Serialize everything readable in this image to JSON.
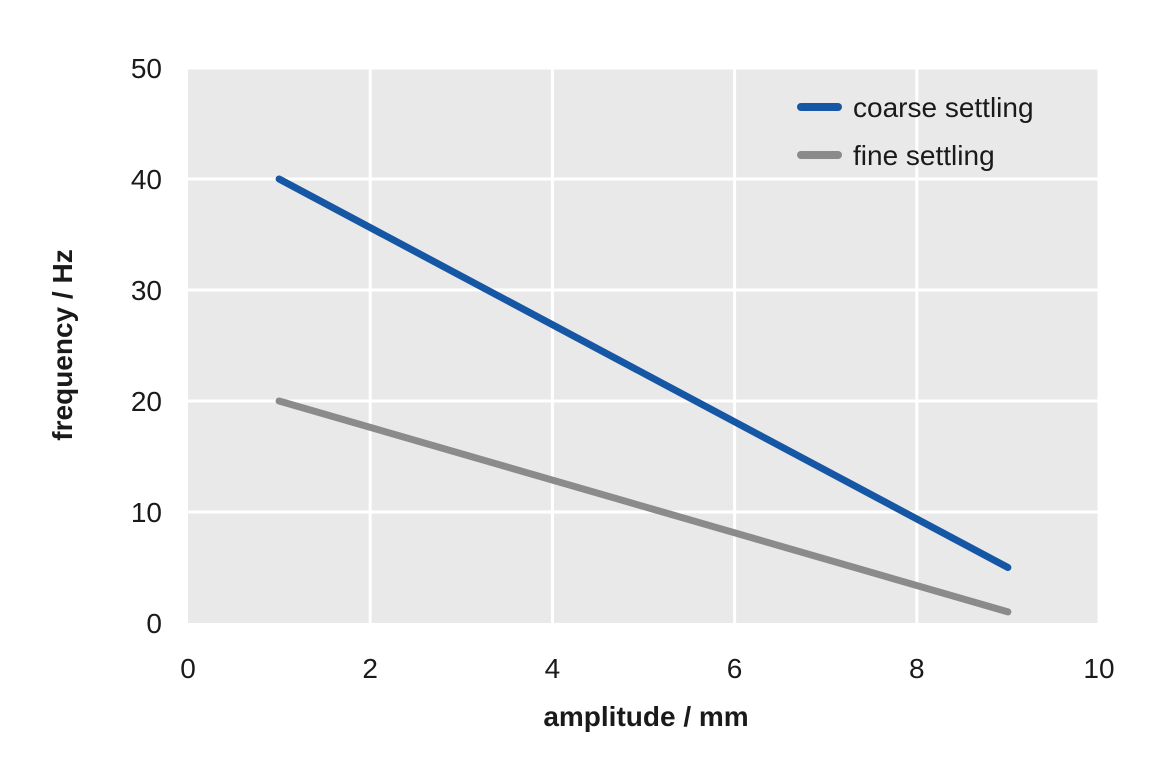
{
  "chart_data": {
    "type": "line",
    "title": "",
    "xlabel": "amplitude / mm",
    "ylabel": "frequency / Hz",
    "xlim": [
      0,
      10
    ],
    "ylim": [
      0,
      50
    ],
    "xticks": [
      0,
      2,
      4,
      6,
      8,
      10
    ],
    "yticks": [
      0,
      10,
      20,
      30,
      40,
      50
    ],
    "grid": true,
    "grid_color": "#ffffff",
    "plot_background": "#e9e9e9",
    "page_background": "#ffffff",
    "text_color": "#1a1a1a",
    "legend_position": "top-right-inside",
    "series": [
      {
        "name": "coarse settling",
        "color": "#1557a5",
        "x": [
          1,
          9
        ],
        "y": [
          40,
          5
        ]
      },
      {
        "name": "fine settling",
        "color": "#8b8b8b",
        "x": [
          1,
          9
        ],
        "y": [
          20,
          1
        ]
      }
    ]
  }
}
